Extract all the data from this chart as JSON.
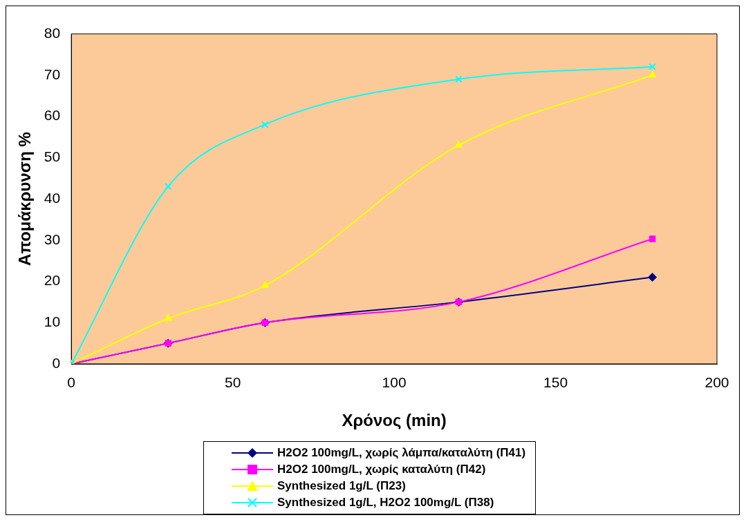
{
  "chart_data": {
    "type": "line",
    "xlabel": "Χρόνος (min)",
    "ylabel": "Απομάκρυνση %",
    "x": [
      0,
      30,
      60,
      120,
      180
    ],
    "series": [
      {
        "name": "H2O2 100mg/L, χωρίς λάμπα/καταλύτη (Π41)",
        "color": "#000080",
        "marker": "diamond",
        "values": [
          0,
          5,
          10,
          15,
          21
        ]
      },
      {
        "name": "H2O2 100mg/L, χωρίς καταλύτη (Π42)",
        "color": "#ff00ff",
        "marker": "square",
        "values": [
          0,
          5,
          10,
          15,
          30.3
        ]
      },
      {
        "name": "Synthesized 1g/L (Π23)",
        "color": "#ffff00",
        "marker": "triangle",
        "values": [
          0,
          11,
          19,
          53,
          70
        ]
      },
      {
        "name": "Synthesized 1g/L, H2O2 100mg/L (Π38)",
        "color": "#00ffff",
        "marker": "cross",
        "values": [
          0,
          43,
          58,
          69,
          72
        ]
      }
    ],
    "xlim": [
      0,
      200
    ],
    "xticks": [
      0,
      50,
      100,
      150,
      200
    ],
    "ylim": [
      0,
      80
    ],
    "yticks": [
      0,
      10,
      20,
      30,
      40,
      50,
      60,
      70,
      80
    ],
    "grid": false,
    "legend": "bottom"
  }
}
